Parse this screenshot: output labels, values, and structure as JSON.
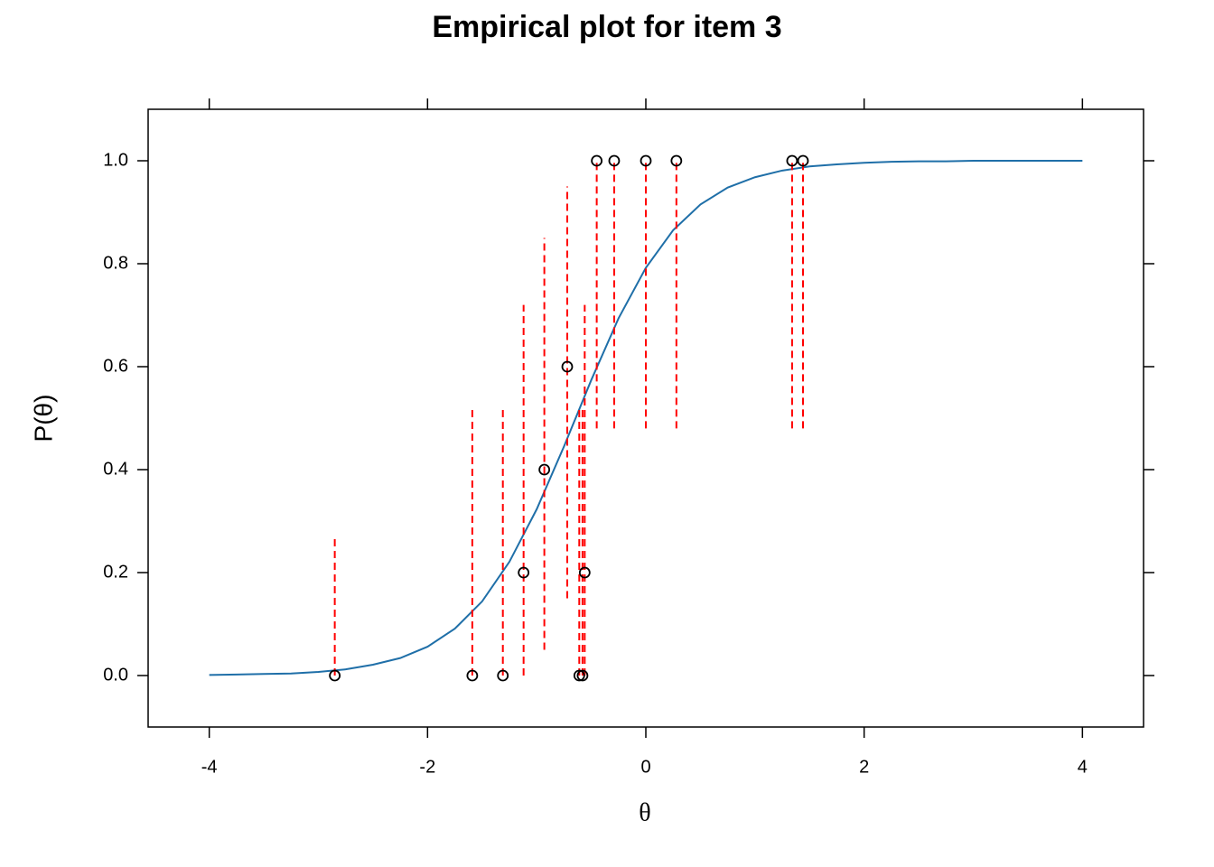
{
  "chart_data": {
    "type": "scatter",
    "title": "Empirical plot for item 3",
    "x_label": "θ",
    "y_label": "P(θ)",
    "xlim": [
      -4.56,
      4.56
    ],
    "ylim": [
      -0.1,
      1.1
    ],
    "xticks": [
      -4,
      -2,
      0,
      2,
      4
    ],
    "yticks": [
      {
        "value": 0,
        "label": "0.0"
      },
      {
        "value": 0.2,
        "label": "0.2"
      },
      {
        "value": 0.4,
        "label": "0.4"
      },
      {
        "value": 0.6,
        "label": "0.6"
      },
      {
        "value": 0.8,
        "label": "0.8"
      },
      {
        "value": 1,
        "label": "1.0"
      }
    ],
    "curve": {
      "color": "#1f6fa8",
      "x": [
        -4,
        -3.75,
        -3.5,
        -3.25,
        -3,
        -2.75,
        -2.5,
        -2.25,
        -2,
        -1.75,
        -1.5,
        -1.25,
        -1,
        -0.75,
        -0.5,
        -0.25,
        0,
        0.25,
        0.5,
        0.75,
        1,
        1.25,
        1.5,
        1.75,
        2,
        2.25,
        2.5,
        2.75,
        3,
        3.25,
        3.5,
        3.75,
        4
      ],
      "values": [
        0.001,
        0.002,
        0.003,
        0.004,
        0.007,
        0.012,
        0.021,
        0.034,
        0.056,
        0.091,
        0.144,
        0.221,
        0.323,
        0.445,
        0.574,
        0.694,
        0.792,
        0.865,
        0.915,
        0.948,
        0.968,
        0.981,
        0.989,
        0.993,
        0.996,
        0.998,
        0.999,
        0.999,
        1,
        1,
        1,
        1,
        1
      ]
    },
    "points": {
      "color": "#000000",
      "error_color": "#ff0000",
      "x": [
        -2.85,
        -1.59,
        -1.31,
        -1.12,
        -0.93,
        -0.72,
        -0.61,
        -0.58,
        -0.56,
        -0.45,
        -0.29,
        0,
        0.28,
        1.34,
        1.44
      ],
      "values": [
        0,
        0,
        0,
        0.2,
        0.4,
        0.6,
        0,
        0,
        0.2,
        1,
        1,
        1,
        1,
        1,
        1
      ],
      "lower": [
        0,
        0,
        0,
        0,
        0.05,
        0.15,
        0,
        0,
        0,
        0.48,
        0.48,
        0.48,
        0.48,
        0.48,
        0.48
      ],
      "upper": [
        0.27,
        0.52,
        0.52,
        0.72,
        0.85,
        0.95,
        0.52,
        0.52,
        0.72,
        1,
        1,
        1,
        1,
        1,
        1
      ]
    }
  }
}
